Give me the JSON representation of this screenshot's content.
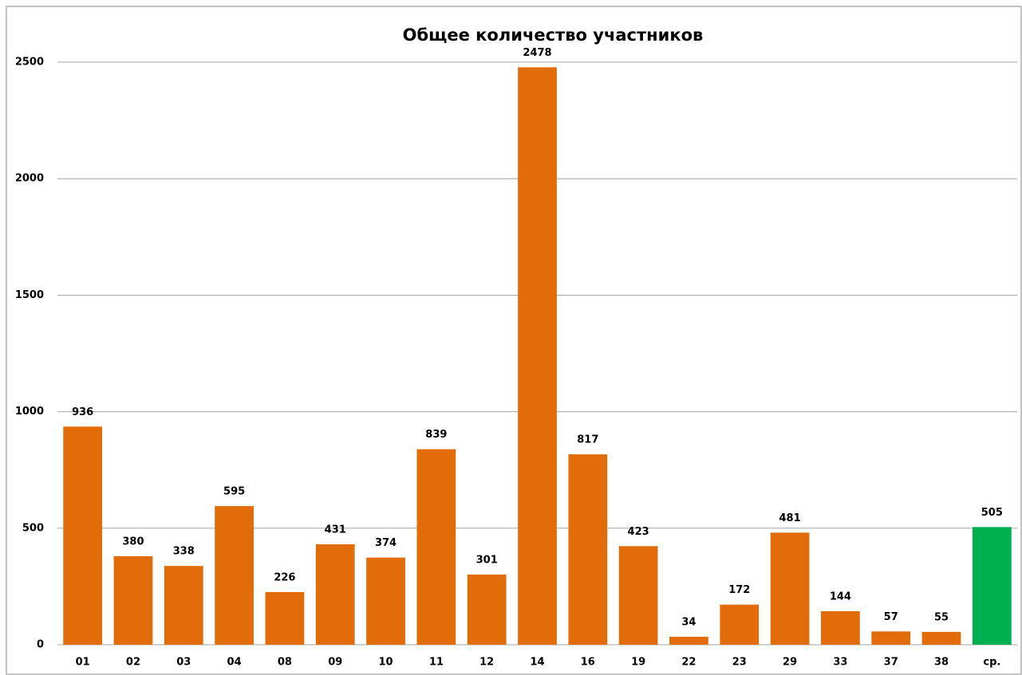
{
  "chart_data": {
    "type": "bar",
    "title": "Общее количество  участников",
    "categories": [
      "01",
      "02",
      "03",
      "04",
      "08",
      "09",
      "10",
      "11",
      "12",
      "14",
      "16",
      "19",
      "22",
      "23",
      "29",
      "33",
      "37",
      "38",
      "ср."
    ],
    "values": [
      936,
      380,
      338,
      595,
      226,
      431,
      374,
      839,
      301,
      2478,
      817,
      423,
      34,
      172,
      481,
      144,
      57,
      55,
      505
    ],
    "colors": [
      "#e36c0a",
      "#e36c0a",
      "#e36c0a",
      "#e36c0a",
      "#e36c0a",
      "#e36c0a",
      "#e36c0a",
      "#e36c0a",
      "#e36c0a",
      "#e36c0a",
      "#e36c0a",
      "#e36c0a",
      "#e36c0a",
      "#e36c0a",
      "#e36c0a",
      "#e36c0a",
      "#e36c0a",
      "#e36c0a",
      "#00b050"
    ],
    "ylim": [
      0,
      2500
    ],
    "yticks": [
      0,
      500,
      1000,
      1500,
      2000,
      2500
    ],
    "grid": true
  }
}
